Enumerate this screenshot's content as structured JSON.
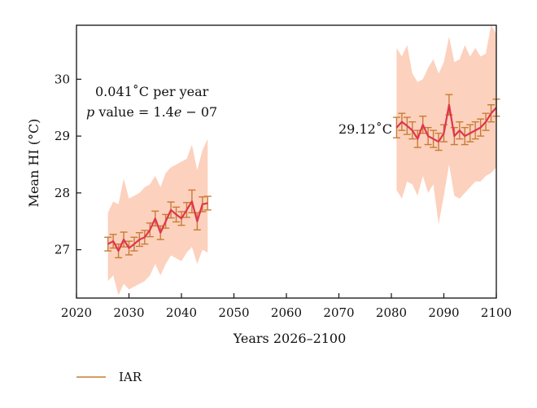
{
  "chart_data": {
    "type": "line",
    "xlabel": "Years 2026–2100",
    "ylabel": "Mean HI (°C)",
    "xlim": [
      2020,
      2100
    ],
    "ylim": [
      26.15,
      30.95
    ],
    "x_ticks": [
      2020,
      2030,
      2040,
      2050,
      2060,
      2070,
      2080,
      2090,
      2100
    ],
    "y_ticks": [
      27,
      28,
      29,
      30
    ],
    "grid": false,
    "legend": {
      "placement": "bottom-left",
      "entries": [
        "IAR"
      ]
    },
    "colors": {
      "line": "#e0344e",
      "errorbar": "#c87b35",
      "band": "#fbc9b1",
      "legend_line": "#c87b35"
    },
    "annotations": {
      "trend_rate": "0.041˚C per year",
      "p_value_prefix": "p",
      "p_value_text": " value = 1.4",
      "p_value_e": "e",
      "p_value_suffix": " − 07",
      "mean_late": "29.12˚C"
    },
    "series": [
      {
        "name": "IAR",
        "segment": "2026-2045",
        "x": [
          2026,
          2027,
          2028,
          2029,
          2030,
          2031,
          2032,
          2033,
          2034,
          2035,
          2036,
          2037,
          2038,
          2039,
          2040,
          2041,
          2042,
          2043,
          2044,
          2045
        ],
        "y": [
          27.1,
          27.15,
          26.98,
          27.18,
          27.03,
          27.1,
          27.18,
          27.22,
          27.35,
          27.55,
          27.3,
          27.5,
          27.7,
          27.62,
          27.55,
          27.7,
          27.85,
          27.5,
          27.8,
          27.82
        ],
        "err": [
          0.12,
          0.12,
          0.12,
          0.13,
          0.12,
          0.12,
          0.12,
          0.12,
          0.12,
          0.13,
          0.12,
          0.12,
          0.14,
          0.13,
          0.12,
          0.13,
          0.2,
          0.15,
          0.13,
          0.12
        ],
        "band_low": [
          26.45,
          26.55,
          26.2,
          26.4,
          26.3,
          26.35,
          26.4,
          26.45,
          26.55,
          26.75,
          26.55,
          26.75,
          26.9,
          26.85,
          26.8,
          26.95,
          27.05,
          26.75,
          27.0,
          26.95
        ],
        "band_high": [
          27.65,
          27.85,
          27.8,
          28.25,
          27.9,
          27.95,
          28.0,
          28.1,
          28.15,
          28.3,
          28.1,
          28.35,
          28.45,
          28.5,
          28.55,
          28.6,
          28.85,
          28.4,
          28.75,
          28.95
        ]
      },
      {
        "name": "IAR",
        "segment": "2081-2100",
        "x": [
          2081,
          2082,
          2083,
          2084,
          2085,
          2086,
          2087,
          2088,
          2089,
          2090,
          2091,
          2092,
          2093,
          2094,
          2095,
          2096,
          2097,
          2098,
          2099,
          2100
        ],
        "y": [
          29.15,
          29.25,
          29.18,
          29.1,
          28.95,
          29.2,
          29.0,
          28.95,
          28.9,
          29.05,
          29.55,
          29.0,
          29.1,
          29.0,
          29.05,
          29.1,
          29.15,
          29.25,
          29.4,
          29.5
        ],
        "err": [
          0.18,
          0.15,
          0.15,
          0.15,
          0.15,
          0.15,
          0.15,
          0.15,
          0.15,
          0.15,
          0.18,
          0.15,
          0.15,
          0.15,
          0.15,
          0.15,
          0.15,
          0.15,
          0.15,
          0.15
        ],
        "band_low": [
          28.05,
          27.9,
          28.2,
          28.15,
          27.95,
          28.3,
          28.0,
          28.15,
          27.45,
          27.95,
          28.5,
          27.95,
          27.9,
          28.0,
          28.1,
          28.2,
          28.2,
          28.3,
          28.35,
          28.45
        ],
        "band_high": [
          30.55,
          30.4,
          30.6,
          30.1,
          29.95,
          30.0,
          30.2,
          30.35,
          30.1,
          30.3,
          30.75,
          30.3,
          30.35,
          30.6,
          30.4,
          30.55,
          30.4,
          30.45,
          30.95,
          30.8
        ]
      }
    ]
  }
}
